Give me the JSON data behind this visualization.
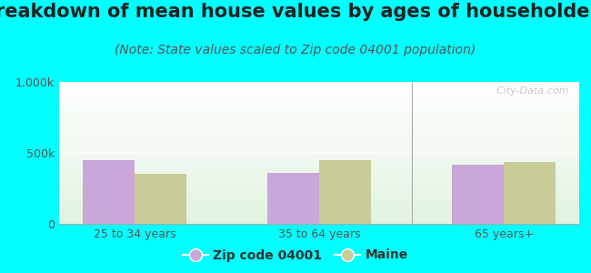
{
  "title": "Breakdown of mean house values by ages of householders",
  "subtitle": "(Note: State values scaled to Zip code 04001 population)",
  "categories": [
    "25 to 34 years",
    "35 to 64 years",
    "65 years+"
  ],
  "zip_values": [
    450000,
    360000,
    415000
  ],
  "state_values": [
    355000,
    450000,
    435000
  ],
  "ylim": [
    0,
    1000000
  ],
  "yticks": [
    0,
    500000,
    1000000
  ],
  "ytick_labels": [
    "0",
    "500k",
    "1,000k"
  ],
  "bar_width": 0.28,
  "zip_color": "#c8a8d8",
  "state_color": "#c8cc98",
  "background_color": "#00ffff",
  "title_fontsize": 15,
  "subtitle_fontsize": 10,
  "legend_zip_label": "Zip code 04001",
  "legend_state_label": "Maine",
  "watermark": "  City-Data.com"
}
